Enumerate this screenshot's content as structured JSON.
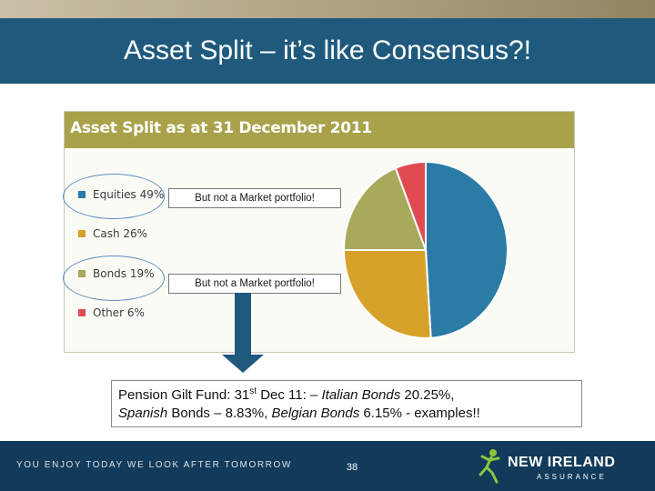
{
  "slide": {
    "title": "Asset Split – it’s like Consensus?!",
    "page_number": "38"
  },
  "chart_data": {
    "type": "pie",
    "title": "Asset Split as at 31 December 2011",
    "slices": [
      {
        "label": "Equities 49%",
        "name": "Equities",
        "value": 49,
        "color": "#2a7ba6"
      },
      {
        "label": "Cash 26%",
        "name": "Cash",
        "value": 26,
        "color": "#d6a22a"
      },
      {
        "label": "Bonds 19%",
        "name": "Bonds",
        "value": 19,
        "color": "#a8a95a"
      },
      {
        "label": "Other 6%",
        "name": "Other",
        "value": 6,
        "color": "#e04b52"
      }
    ]
  },
  "callouts": {
    "equities": "But not a Market portfolio!",
    "bonds": "But not a Market portfolio!"
  },
  "note": {
    "line1_pre": "Pension Gilt Fund: 31",
    "line1_sup": "st",
    "line1_mid": " Dec 11: – ",
    "line1_italic": "Italian Bonds",
    "line1_post": " 20.25%,",
    "line2_italic1": "Spanish",
    "line2_mid1": " Bonds – 8.83%, ",
    "line2_italic2": "Belgian Bonds",
    "line2_post": " 6.15% - examples!!"
  },
  "footer": {
    "tagline": "YOU ENJOY TODAY WE LOOK AFTER TOMORROW",
    "logo_main": "NEW IRELAND",
    "logo_sub": "ASSURANCE",
    "logo_icon": "leaping-figure-logo-icon"
  },
  "colors": {
    "title_band": "#1f5a7d",
    "chart_header": "#a9a24a",
    "footer": "#123a5a",
    "highlight_ellipse": "#5d8fbf"
  }
}
